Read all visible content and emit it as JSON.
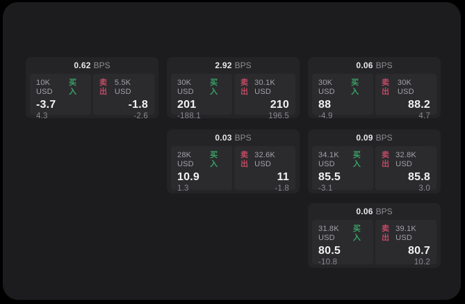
{
  "labels": {
    "buy": "买入",
    "sell": "卖出",
    "bps": "BPS"
  },
  "colors": {
    "surface_bg": "#1c1c1e",
    "card_bg": "#242427",
    "panel_bg": "#2b2b2e",
    "buy_green": "#3aa366",
    "sell_red": "#bf4a63"
  },
  "cards": [
    {
      "col": 0,
      "row": 0,
      "bps": "0.62",
      "buy": {
        "notional": "10K USD",
        "price": "-3.7",
        "delta": "4.3"
      },
      "sell": {
        "notional": "5.5K USD",
        "price": "-1.8",
        "delta": "-2.6"
      }
    },
    {
      "col": 1,
      "row": 0,
      "bps": "2.92",
      "buy": {
        "notional": "30K USD",
        "price": "201",
        "delta": "-188.1"
      },
      "sell": {
        "notional": "30.1K USD",
        "price": "210",
        "delta": "196.5"
      }
    },
    {
      "col": 2,
      "row": 0,
      "bps": "0.06",
      "buy": {
        "notional": "30K USD",
        "price": "88",
        "delta": "-4.9"
      },
      "sell": {
        "notional": "30K USD",
        "price": "88.2",
        "delta": "4.7"
      }
    },
    {
      "col": 1,
      "row": 1,
      "bps": "0.03",
      "buy": {
        "notional": "28K USD",
        "price": "10.9",
        "delta": "1.3"
      },
      "sell": {
        "notional": "32.6K USD",
        "price": "11",
        "delta": "-1.8"
      }
    },
    {
      "col": 2,
      "row": 1,
      "bps": "0.09",
      "buy": {
        "notional": "34.1K USD",
        "price": "85.5",
        "delta": "-3.1"
      },
      "sell": {
        "notional": "32.8K USD",
        "price": "85.8",
        "delta": "3.0"
      }
    },
    {
      "col": 2,
      "row": 2,
      "bps": "0.06",
      "buy": {
        "notional": "31.8K USD",
        "price": "80.5",
        "delta": "-10.8"
      },
      "sell": {
        "notional": "39.1K USD",
        "price": "80.7",
        "delta": "10.2"
      }
    }
  ]
}
